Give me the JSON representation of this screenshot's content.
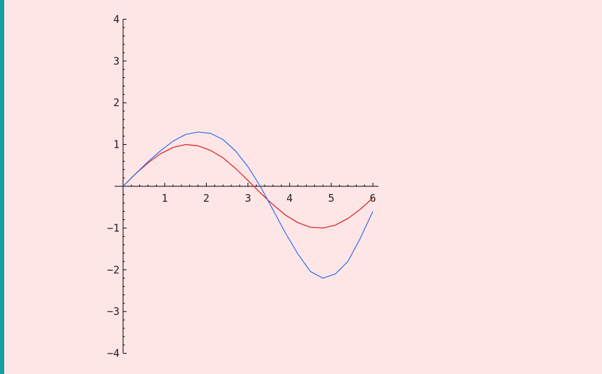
{
  "colors": {
    "background": "#ffe6e6",
    "left_bar": "#14a0a0",
    "axis": "#000000",
    "series_1": "#e01818",
    "series_2": "#2a6ef0"
  },
  "chart_data": {
    "type": "line",
    "title": "",
    "xlabel": "",
    "ylabel": "",
    "xlim": [
      0,
      6.1
    ],
    "ylim": [
      -4,
      4
    ],
    "x_ticks": [
      1,
      2,
      3,
      4,
      5,
      6
    ],
    "y_ticks": [
      -4,
      -3,
      -2,
      -1,
      1,
      2,
      3,
      4
    ],
    "grid": false,
    "legend": "none",
    "series": [
      {
        "color": "#e01818",
        "x": [
          0,
          0.3,
          0.6,
          0.9,
          1.2,
          1.5,
          1.8,
          2.1,
          2.4,
          2.7,
          3.0,
          3.3,
          3.6,
          3.9,
          4.2,
          4.5,
          4.8,
          5.1,
          5.4,
          5.7,
          6.0
        ],
        "values": [
          0,
          0.3,
          0.56,
          0.78,
          0.93,
          1.0,
          0.97,
          0.86,
          0.68,
          0.43,
          0.14,
          -0.16,
          -0.44,
          -0.69,
          -0.87,
          -0.98,
          -1.0,
          -0.93,
          -0.77,
          -0.55,
          -0.28
        ]
      },
      {
        "color": "#2a6ef0",
        "x": [
          0,
          0.3,
          0.6,
          0.9,
          1.2,
          1.5,
          1.8,
          2.1,
          2.4,
          2.7,
          3.0,
          3.3,
          3.6,
          3.9,
          4.2,
          4.5,
          4.8,
          5.1,
          5.4,
          5.7,
          6.0
        ],
        "values": [
          0,
          0.3,
          0.59,
          0.85,
          1.08,
          1.24,
          1.3,
          1.27,
          1.12,
          0.85,
          0.47,
          -0.01,
          -0.56,
          -1.12,
          -1.62,
          -2.04,
          -2.2,
          -2.1,
          -1.8,
          -1.24,
          -0.6
        ]
      }
    ]
  }
}
